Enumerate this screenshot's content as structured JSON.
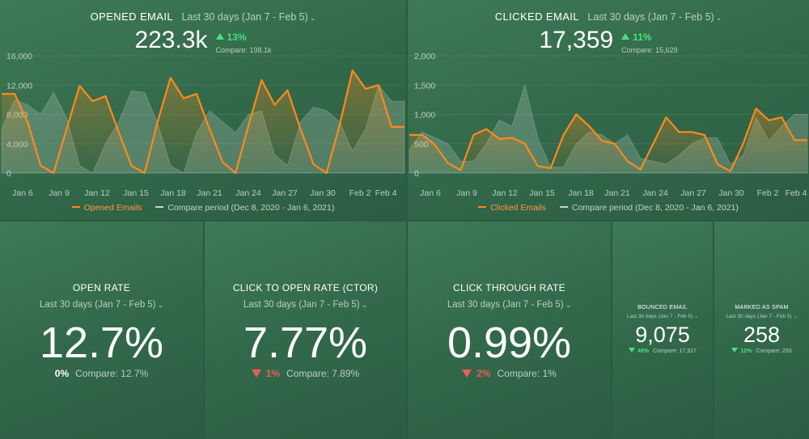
{
  "colors": {
    "accent": "#ff8a1a",
    "compare": "#c7d4cc",
    "up": "#49e07c",
    "down": "#f25b5b"
  },
  "opened": {
    "title": "OPENED EMAIL",
    "period": "Last 30 days (Jan 7 - Feb 5)",
    "value": "223.3k",
    "change": "13%",
    "compare": "Compare: 198.1k",
    "legend_primary": "Opened Emails",
    "legend_compare": "Compare period (Dec 8, 2020 - Jan 6, 2021)"
  },
  "clicked": {
    "title": "CLICKED EMAIL",
    "period": "Last 30 days (Jan 7 - Feb 5)",
    "value": "17,359",
    "change": "11%",
    "compare": "Compare: 15,629",
    "legend_primary": "Clicked Emails",
    "legend_compare": "Compare period (Dec 8, 2020 - Jan 6, 2021)"
  },
  "open_rate": {
    "title": "OPEN RATE",
    "period": "Last 30 days (Jan 7 - Feb 5)",
    "value": "12.7%",
    "change": "0%",
    "compare": "Compare: 12.7%"
  },
  "ctor": {
    "title": "CLICK TO OPEN RATE (CTOR)",
    "period": "Last 30 days (Jan 7 - Feb 5)",
    "value": "7.77%",
    "change": "1%",
    "compare": "Compare: 7.89%"
  },
  "ctr": {
    "title": "CLICK THROUGH RATE",
    "period": "Last 30 days (Jan 7 - Feb 5)",
    "value": "0.99%",
    "change": "2%",
    "compare": "Compare: 1%"
  },
  "bounced": {
    "title": "BOUNCED EMAIL",
    "period": "Last 30 days (Jan 7 - Feb 5)",
    "value": "9,075",
    "change": "49%",
    "compare": "Compare: 17,927"
  },
  "spam": {
    "title": "MARKED AS SPAM",
    "period": "Last 30 days (Jan 7 - Feb 5)",
    "value": "258",
    "change": "12%",
    "compare": "Compare: 293"
  },
  "chart_data": [
    {
      "type": "area",
      "x_ticks": [
        "Jan 6",
        "Jan 9",
        "Jan 12",
        "Jan 15",
        "Jan 18",
        "Jan 21",
        "Jan 24",
        "Jan 27",
        "Jan 30",
        "Feb 2",
        "Feb 4"
      ],
      "y_ticks": [
        "16,000",
        "12,000",
        "8,000",
        "4,000",
        "0"
      ],
      "ylim": [
        0,
        16000
      ],
      "series": [
        {
          "name": "Opened Emails",
          "values": [
            10800,
            10800,
            7000,
            1000,
            0,
            6000,
            11900,
            9800,
            10500,
            5600,
            1000,
            0,
            7000,
            13000,
            10200,
            10800,
            6000,
            1500,
            0,
            6500,
            12700,
            9300,
            11300,
            6000,
            1200,
            0,
            6500,
            14000,
            11500,
            12000,
            6300,
            6300
          ]
        },
        {
          "name": "Compare period (Dec 8, 2020 - Jan 6, 2021)",
          "values": [
            6000,
            10000,
            9300,
            8000,
            11000,
            7500,
            1000,
            0,
            4000,
            7000,
            11200,
            11000,
            6800,
            1000,
            0,
            5500,
            8500,
            7000,
            5500,
            8000,
            8500,
            2500,
            1000,
            7000,
            9000,
            8500,
            7000,
            3000,
            6000,
            12000,
            9800,
            9800
          ]
        }
      ]
    },
    {
      "type": "area",
      "x_ticks": [
        "Jan 6",
        "Jan 9",
        "Jan 12",
        "Jan 15",
        "Jan 18",
        "Jan 21",
        "Jan 24",
        "Jan 27",
        "Jan 30",
        "Feb 2",
        "Feb 4"
      ],
      "y_ticks": [
        "2,000",
        "1,500",
        "1,000",
        "500",
        "0"
      ],
      "ylim": [
        0,
        2000
      ],
      "series": [
        {
          "name": "Clicked Emails",
          "values": [
            650,
            650,
            480,
            170,
            50,
            650,
            750,
            580,
            600,
            500,
            120,
            80,
            650,
            1000,
            800,
            550,
            500,
            200,
            60,
            500,
            950,
            700,
            700,
            650,
            150,
            30,
            500,
            1100,
            900,
            950,
            560,
            560
          ]
        },
        {
          "name": "Compare period (Dec 8, 2020 - Jan 6, 2021)",
          "values": [
            400,
            700,
            600,
            500,
            200,
            200,
            500,
            900,
            800,
            1500,
            600,
            100,
            100,
            500,
            700,
            650,
            500,
            650,
            250,
            200,
            150,
            300,
            500,
            600,
            600,
            150,
            300,
            950,
            550,
            800,
            1000,
            1000
          ]
        }
      ]
    }
  ]
}
